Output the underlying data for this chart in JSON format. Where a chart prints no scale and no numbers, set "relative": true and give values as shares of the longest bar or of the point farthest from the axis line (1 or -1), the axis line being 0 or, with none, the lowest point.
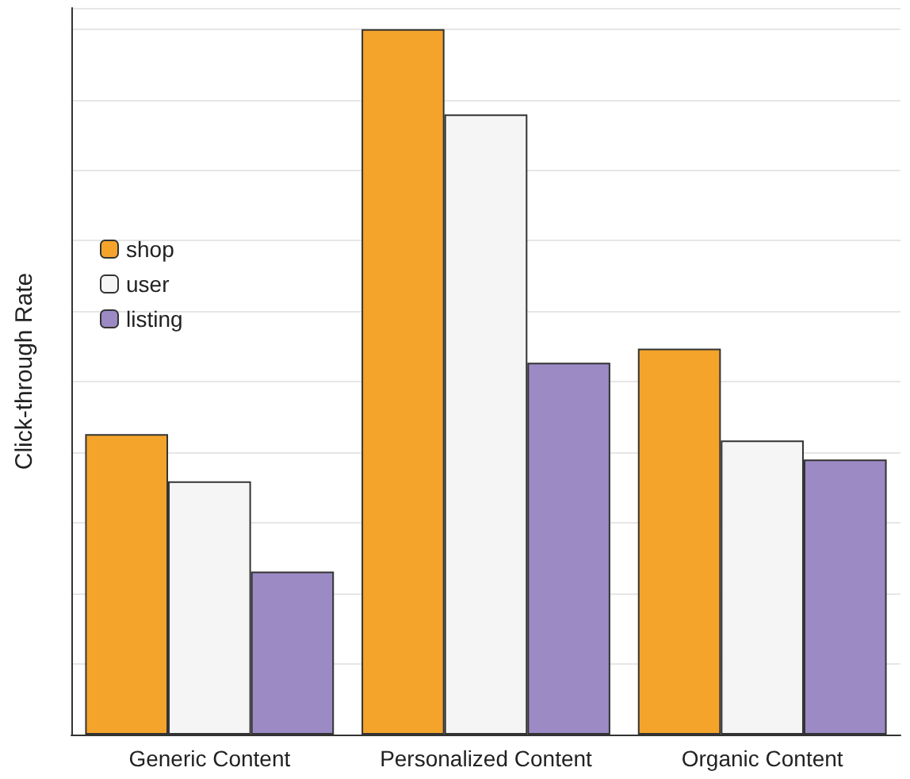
{
  "chart_data": {
    "type": "bar",
    "ylabel": "Click-through Rate",
    "categories": [
      "Generic Content",
      "Personalized Content",
      "Organic Content"
    ],
    "relative": true,
    "grid": "y",
    "legend": "left",
    "series": [
      {
        "name": "shop",
        "color": "#f4a42b",
        "values": [
          0.426,
          1,
          0.547
        ]
      },
      {
        "name": "user",
        "color": "#f5f5f5",
        "values": [
          0.359,
          0.879,
          0.417
        ]
      },
      {
        "name": "listing",
        "color": "#9b8ac4",
        "values": [
          0.231,
          0.527,
          0.39
        ]
      }
    ]
  }
}
